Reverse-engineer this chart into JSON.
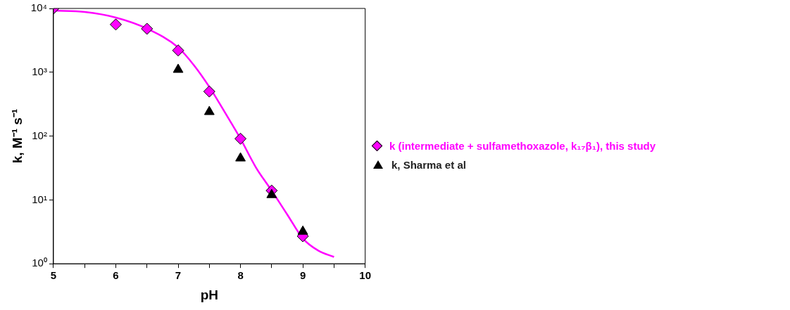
{
  "chart_data": {
    "type": "scatter",
    "xlabel": "pH",
    "ylabel": "k, M⁻¹ s⁻¹",
    "log": "y",
    "grid": false,
    "legend": "right",
    "xlim": [
      5,
      10
    ],
    "xticks": [
      5,
      {
        "value": 5.5,
        "label": null
      },
      6,
      {
        "value": 6.5,
        "label": null
      },
      7,
      {
        "value": 7.5,
        "label": null
      },
      8,
      {
        "value": 8.5,
        "label": null
      },
      9,
      {
        "value": 9.5,
        "label": null
      },
      10
    ],
    "ylim": [
      1,
      10000
    ],
    "yticks": [
      {
        "value": 1,
        "label": "10⁰"
      },
      {
        "value": 10,
        "label": "10¹"
      },
      {
        "value": 100,
        "label": "10²"
      },
      {
        "value": 1000,
        "label": "10³"
      },
      {
        "value": 10000,
        "label": "10⁴"
      }
    ],
    "series": [
      {
        "type": "line",
        "color": "#ff00ff",
        "marker": "none",
        "x": [
          5,
          5.5,
          6,
          6.5,
          7,
          7.25,
          7.5,
          7.75,
          8,
          8.25,
          8.5,
          8.75,
          9,
          9.25,
          9.5
        ],
        "values": [
          9250,
          8800,
          7200,
          4830,
          2450,
          1300,
          590,
          235,
          91,
          32,
          14,
          5.9,
          2.5,
          1.6,
          1.28
        ]
      },
      {
        "name": "k (intermediate + sulfamethoxazole, k₁₇β₁), this study",
        "color": "#ff00ff",
        "marker": "diamond",
        "x": [
          5,
          6,
          6.5,
          7,
          7.5,
          8,
          8.5,
          9
        ],
        "values": [
          10000,
          5600,
          4800,
          2200,
          500,
          91,
          14,
          2.7
        ]
      },
      {
        "name": "k, Sharma et al",
        "color": "#000000",
        "marker": "triangle",
        "x": [
          7,
          7.5,
          8,
          8.5,
          9
        ],
        "values": [
          1100,
          240,
          45,
          12,
          3.2
        ]
      }
    ]
  }
}
